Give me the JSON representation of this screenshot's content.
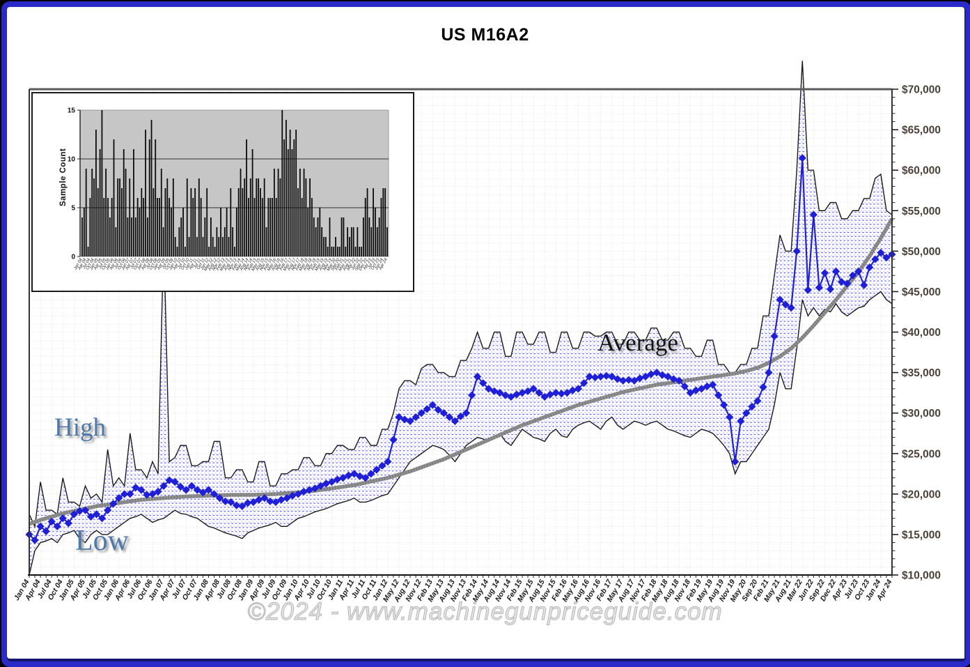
{
  "title": "US M16A2",
  "watermark": "©2024 - www.machinegunpriceguide.com",
  "annotations": {
    "high_label": "High",
    "low_label": "Low",
    "average_label": "Average"
  },
  "colors": {
    "frame_blue": "#2a2ac8",
    "marker_blue": "#1f1fd6",
    "band_dot_blue": "#4040ff",
    "trend_gray": "#8f8f8f",
    "hilo_line": "#1a1a1a",
    "grid_gray": "#cccccc",
    "label_blue": "#4d79ab",
    "inset_plot_gray": "#c6c6c6"
  },
  "chart_data": {
    "type": "line",
    "title": "US M16A2",
    "xlabel": "",
    "ylabel": "",
    "legend_position": "none",
    "grid": true,
    "y_axis": {
      "min": 10000,
      "max": 70000,
      "major_step": 5000,
      "minor_step": 1000,
      "tick_labels": [
        "$70,000",
        "$65,000",
        "$60,000",
        "$55,000",
        "$50,000",
        "$45,000",
        "$40,000",
        "$35,000",
        "$30,000",
        "$25,000",
        "$20,000",
        "$15,000",
        "$10,000"
      ]
    },
    "x_labels": [
      "Jan 04",
      "Apr 04",
      "Jul 04",
      "Oct 04",
      "Jan 05",
      "Apr 05",
      "Jul 05",
      "Oct 05",
      "Jan 06",
      "Apr 06",
      "Jul 06",
      "Oct 06",
      "Jan 07",
      "Apr 07",
      "Jul 07",
      "Oct 07",
      "Jan 08",
      "Apr 08",
      "Jul 08",
      "Oct 08",
      "Jan 09",
      "Apr 09",
      "Jul 09",
      "Oct 09",
      "Jan 10",
      "Apr 10",
      "Jul 10",
      "Oct 10",
      "Jan 11",
      "Apr 11",
      "Jul 11",
      "Oct 11",
      "Jan 12",
      "May 12",
      "Aug 12",
      "Nov 12",
      "Feb 13",
      "May 13",
      "Aug 13",
      "Nov 13",
      "Feb 14",
      "May 14",
      "Aug 14",
      "Nov 14",
      "Feb 15",
      "May 15",
      "Aug 15",
      "Nov 15",
      "Feb 16",
      "May 16",
      "Aug 16",
      "Nov 16",
      "Feb 17",
      "May 17",
      "Aug 17",
      "Nov 17",
      "Feb 18",
      "May 18",
      "Aug 18",
      "Nov 18",
      "Feb 19",
      "May 19",
      "Aug 19",
      "Nov 19",
      "May 20",
      "Sep 20",
      "Feb 21",
      "May 21",
      "Aug 21",
      "Mar 22",
      "Jun 22",
      "Sep 22",
      "Dec 22",
      "Apr 23",
      "Jul 23",
      "Oct 23",
      "Jan 24",
      "Apr 24"
    ],
    "points_per_label": 2,
    "series": [
      {
        "name": "High",
        "values": [
          17500,
          16000,
          21500,
          18000,
          18000,
          17500,
          22000,
          19000,
          19000,
          18500,
          21000,
          19500,
          20000,
          19000,
          25500,
          21000,
          22000,
          21000,
          27500,
          23000,
          23000,
          22000,
          24000,
          22500,
          52000,
          24000,
          24500,
          26000,
          26000,
          23500,
          23500,
          24000,
          24000,
          26500,
          26500,
          22000,
          22000,
          23000,
          23000,
          21500,
          21500,
          24000,
          24000,
          21000,
          21000,
          22500,
          22500,
          23000,
          23000,
          24500,
          24500,
          23500,
          23500,
          25000,
          25000,
          26000,
          26000,
          25500,
          25500,
          27000,
          27000,
          26000,
          26000,
          28000,
          28000,
          30000,
          33000,
          34000,
          34000,
          33500,
          35500,
          36000,
          36000,
          35000,
          35000,
          34500,
          34500,
          36500,
          36500,
          38000,
          40000,
          38000,
          38000,
          40000,
          40000,
          37000,
          37000,
          40000,
          40000,
          38500,
          38500,
          40000,
          40000,
          37500,
          37500,
          40000,
          40000,
          38000,
          38000,
          40000,
          40000,
          39500,
          39500,
          40000,
          40000,
          38500,
          38500,
          40000,
          40000,
          39000,
          39000,
          40500,
          40500,
          39000,
          39000,
          40000,
          40000,
          38000,
          38000,
          37000,
          37000,
          39000,
          39000,
          36000,
          36000,
          35000,
          35000,
          36000,
          36000,
          38000,
          38000,
          42000,
          42000,
          47000,
          52000,
          50000,
          50000,
          60000,
          73500,
          60000,
          60000,
          55000,
          55000,
          56000,
          56000,
          54000,
          54000,
          55000,
          55000,
          56500,
          56500,
          59000,
          59500,
          55000,
          54500
        ]
      },
      {
        "name": "Low",
        "values": [
          10000,
          13000,
          14000,
          14200,
          14500,
          14000,
          15000,
          15200,
          15500,
          14500,
          14000,
          15000,
          15500,
          15000,
          15000,
          15500,
          16000,
          16500,
          17000,
          17200,
          17500,
          17000,
          16500,
          16800,
          17000,
          17500,
          18000,
          17600,
          17500,
          17200,
          17000,
          16500,
          16000,
          15800,
          15500,
          15200,
          15000,
          14800,
          14500,
          15200,
          15500,
          15800,
          16000,
          16200,
          16500,
          16000,
          16000,
          16500,
          17000,
          17200,
          17500,
          17800,
          18000,
          18200,
          18500,
          18800,
          19000,
          19200,
          19500,
          19000,
          19000,
          19200,
          19500,
          19800,
          20000,
          21000,
          22000,
          23000,
          24000,
          24500,
          25000,
          25500,
          26000,
          25800,
          25500,
          24800,
          24000,
          25000,
          26000,
          26500,
          27000,
          26800,
          26500,
          27000,
          27500,
          26500,
          26000,
          27000,
          28000,
          27500,
          27000,
          26800,
          26500,
          27500,
          28000,
          27200,
          27000,
          28000,
          28500,
          28800,
          29000,
          28500,
          28000,
          29000,
          29500,
          28500,
          28000,
          28500,
          29000,
          28800,
          28500,
          28800,
          29000,
          28500,
          28000,
          27800,
          27500,
          27200,
          27000,
          27500,
          28000,
          27800,
          27500,
          26800,
          26000,
          25000,
          22500,
          24000,
          24000,
          25000,
          26000,
          27000,
          28000,
          31000,
          35000,
          33000,
          33000,
          38000,
          44000,
          42000,
          43000,
          42000,
          42800,
          42500,
          43500,
          42500,
          42000,
          42500,
          43000,
          43200,
          44000,
          44500,
          45000,
          44000,
          43500
        ]
      },
      {
        "name": "Average (monthly)",
        "values": [
          15000,
          14300,
          16000,
          15400,
          16600,
          16000,
          17000,
          16400,
          17500,
          17900,
          18000,
          17200,
          17500,
          17000,
          18000,
          18800,
          19500,
          20000,
          20000,
          20800,
          20500,
          19900,
          20000,
          20300,
          21000,
          21700,
          21500,
          20900,
          20500,
          21000,
          20500,
          20200,
          20500,
          20000,
          19500,
          19100,
          19000,
          18600,
          18500,
          18900,
          19000,
          19300,
          19500,
          19100,
          19000,
          19300,
          19500,
          19800,
          20000,
          20300,
          20500,
          20700,
          21000,
          21300,
          21500,
          21800,
          22000,
          22300,
          22500,
          22200,
          22000,
          22500,
          23000,
          23500,
          24000,
          26700,
          29500,
          29200,
          29000,
          29500,
          30000,
          30500,
          31000,
          30400,
          30000,
          29500,
          29000,
          29600,
          30000,
          32200,
          34500,
          33700,
          33000,
          32700,
          32500,
          32200,
          32000,
          32300,
          32500,
          32700,
          33000,
          32500,
          32000,
          32300,
          32500,
          32400,
          32500,
          32800,
          33000,
          33700,
          34500,
          34400,
          34500,
          34600,
          34500,
          34200,
          34000,
          34100,
          34000,
          34300,
          34500,
          34800,
          35000,
          34700,
          34500,
          34200,
          34000,
          33300,
          32500,
          32800,
          33000,
          33300,
          33500,
          32200,
          31000,
          29500,
          24000,
          29000,
          30000,
          30800,
          31500,
          33200,
          35000,
          39500,
          44000,
          43400,
          43000,
          50000,
          61500,
          45200,
          54500,
          45500,
          47300,
          45300,
          47500,
          46200,
          46000,
          47000,
          47500,
          45800,
          48000,
          49000,
          49800,
          49200,
          49600
        ]
      },
      {
        "name": "Average (trend)",
        "per_label": true,
        "values": [
          16300,
          16800,
          17200,
          17600,
          17900,
          18200,
          18500,
          18700,
          18900,
          19100,
          19300,
          19400,
          19500,
          19600,
          19700,
          19750,
          19800,
          19850,
          19900,
          19900,
          19900,
          19950,
          20000,
          20100,
          20200,
          20350,
          20500,
          20700,
          20900,
          21100,
          21400,
          21700,
          22000,
          22400,
          22800,
          23300,
          23800,
          24300,
          24900,
          25500,
          26100,
          26700,
          27300,
          27900,
          28500,
          29000,
          29500,
          30000,
          30500,
          31000,
          31400,
          31800,
          32200,
          32600,
          32900,
          33200,
          33500,
          33700,
          33900,
          34100,
          34300,
          34500,
          34700,
          34900,
          35200,
          35600,
          36200,
          37000,
          38000,
          39300,
          40800,
          42400,
          44000,
          45700,
          47400,
          49400,
          51600,
          54000
        ]
      }
    ],
    "inset": {
      "type": "bar",
      "ylabel": "Sample Count",
      "y_ticks": [
        0,
        5,
        10,
        15
      ],
      "y_max": 15,
      "values": [
        4,
        5,
        9,
        1,
        6,
        9,
        8,
        13,
        7,
        11,
        15,
        6,
        9,
        6,
        4,
        6,
        12,
        3,
        8,
        8,
        7,
        11,
        9,
        4,
        8,
        4,
        11,
        4,
        6,
        5,
        7,
        6,
        13,
        4,
        12,
        14,
        7,
        12,
        6,
        6,
        9,
        3,
        7,
        8,
        6,
        5,
        8,
        2,
        1,
        3,
        4,
        5,
        1,
        8,
        2,
        7,
        6,
        7,
        2,
        8,
        6,
        2,
        4,
        7,
        1,
        4,
        2,
        1,
        3,
        2,
        5,
        2,
        3,
        5,
        2,
        7,
        3,
        1,
        5,
        7,
        9,
        7,
        8,
        12,
        6,
        8,
        11,
        6,
        8,
        8,
        7,
        6,
        8,
        3,
        6,
        6,
        6,
        9,
        6,
        9,
        8,
        15,
        12,
        14,
        11,
        13,
        11,
        12,
        13,
        7,
        9,
        6,
        9,
        8,
        5,
        8,
        6,
        4,
        3,
        4,
        5,
        3,
        2,
        2,
        1,
        4,
        1,
        1,
        2,
        1,
        1,
        4,
        4,
        1,
        3,
        2,
        3,
        3,
        1,
        3,
        1,
        1,
        4,
        6,
        7,
        4,
        3,
        7,
        5,
        3,
        4,
        6,
        7,
        7,
        3
      ]
    }
  }
}
